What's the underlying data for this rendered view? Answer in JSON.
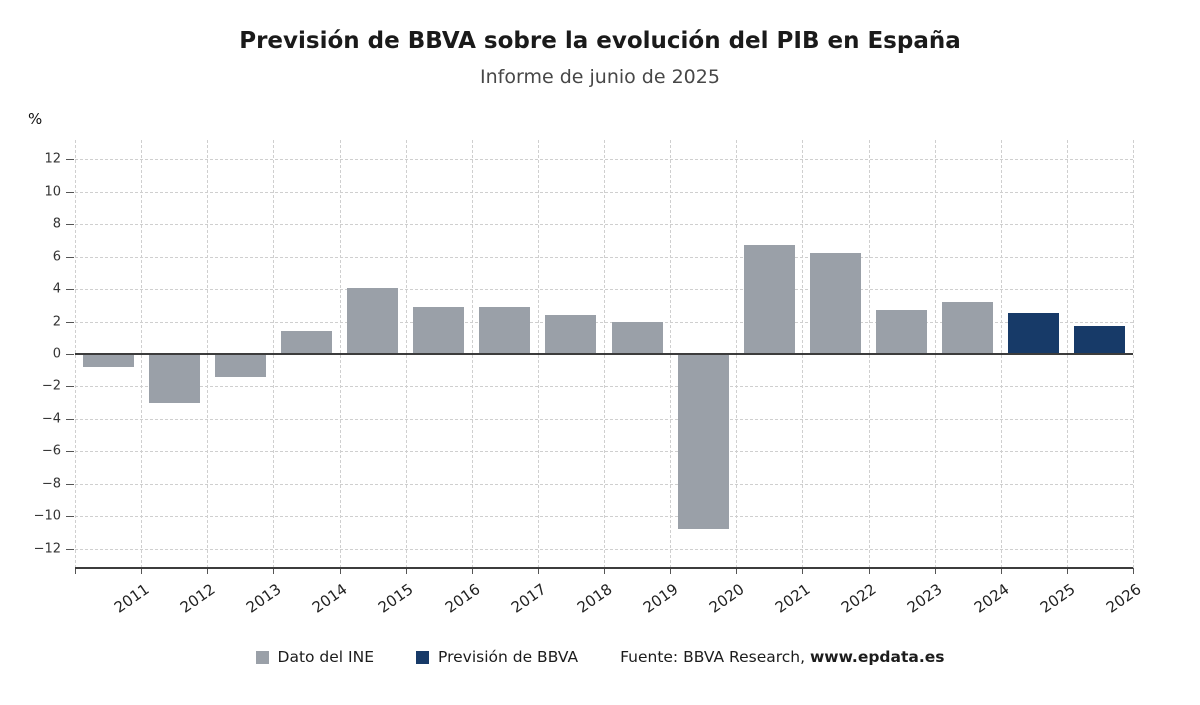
{
  "legend": [
    {
      "label": "Dato del INE",
      "color": "#9aa0a8"
    },
    {
      "label": "Previsión de BBVA",
      "color": "#173a68"
    }
  ],
  "source": {
    "prefix": "Fuente: BBVA Research, ",
    "bold": "www.epdata.es"
  },
  "chart_data": {
    "type": "bar",
    "title": "Previsión de BBVA sobre la evolución del PIB en España",
    "subtitle": "Informe de junio de 2025",
    "ylabel": "%",
    "xlabel": "",
    "categories": [
      "2011",
      "2012",
      "2013",
      "2014",
      "2015",
      "2016",
      "2017",
      "2018",
      "2019",
      "2020",
      "2021",
      "2022",
      "2023",
      "2024",
      "2025",
      "2026"
    ],
    "series": [
      {
        "name": "Dato del INE",
        "color": "#9aa0a8",
        "values": [
          -0.8,
          -3.0,
          -1.4,
          1.4,
          4.1,
          2.9,
          2.9,
          2.4,
          2.0,
          -10.8,
          6.7,
          6.2,
          2.7,
          3.2,
          null,
          null
        ]
      },
      {
        "name": "Previsión de BBVA",
        "color": "#173a68",
        "values": [
          null,
          null,
          null,
          null,
          null,
          null,
          null,
          null,
          null,
          null,
          null,
          null,
          null,
          null,
          2.5,
          1.7
        ]
      }
    ],
    "ylim": [
      -13,
      13
    ],
    "yticks": [
      -12,
      -10,
      -8,
      -6,
      -4,
      -2,
      0,
      2,
      4,
      6,
      8,
      10,
      12
    ],
    "grid": true,
    "legend_position": "bottom"
  }
}
